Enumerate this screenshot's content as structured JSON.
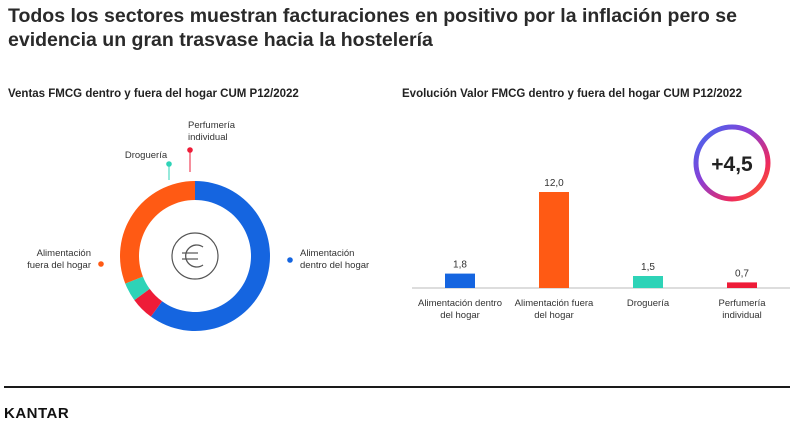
{
  "headline": {
    "line1": "Todos los sectores muestran facturaciones en positivo por la inflación pero se",
    "line2": "evidencia un gran trasvase hacia la hostelería"
  },
  "colors": {
    "alimentacion_dentro": "#1565e0",
    "alimentacion_fuera": "#ff5a14",
    "drogueria": "#2ed3b7",
    "perfumeria": "#ee1c38"
  },
  "badge": {
    "value": "+4,5"
  },
  "footer": {
    "brand": "KANTAR"
  },
  "chart_data": [
    {
      "type": "pie",
      "title": "Ventas FMCG dentro y fuera del hogar CUM P12/2022",
      "center_icon": "euro-icon",
      "slices": [
        {
          "name": "Alimentación dentro del hogar",
          "label_lines": [
            "Alimentación",
            "dentro del hogar"
          ],
          "value": 60
        },
        {
          "name": "Perfumería individual",
          "label_lines": [
            "Perfumería",
            "individual"
          ],
          "value": 5
        },
        {
          "name": "Droguería",
          "label_lines": [
            "Droguería"
          ],
          "value": 4
        },
        {
          "name": "Alimentación fuera del hogar",
          "label_lines": [
            "Alimentación",
            "fuera del hogar"
          ],
          "value": 31
        }
      ]
    },
    {
      "type": "bar",
      "title": "Evolución Valor FMCG dentro y fuera del hogar CUM P12/2022",
      "categories": [
        {
          "name": "Alimentación dentro del hogar",
          "label_lines": [
            "Alimentación dentro",
            "del hogar"
          ]
        },
        {
          "name": "Alimentación fuera del hogar",
          "label_lines": [
            "Alimentación fuera",
            "del hogar"
          ]
        },
        {
          "name": "Droguería",
          "label_lines": [
            "Droguería"
          ]
        },
        {
          "name": "Perfumería individual",
          "label_lines": [
            "Perfumería",
            "individual"
          ]
        }
      ],
      "values": [
        1.8,
        12.0,
        1.5,
        0.7
      ],
      "value_labels": [
        "1,8",
        "12,0",
        "1,5",
        "0,7"
      ],
      "ylim": [
        0,
        12
      ],
      "xlabel": "",
      "ylabel": ""
    }
  ]
}
